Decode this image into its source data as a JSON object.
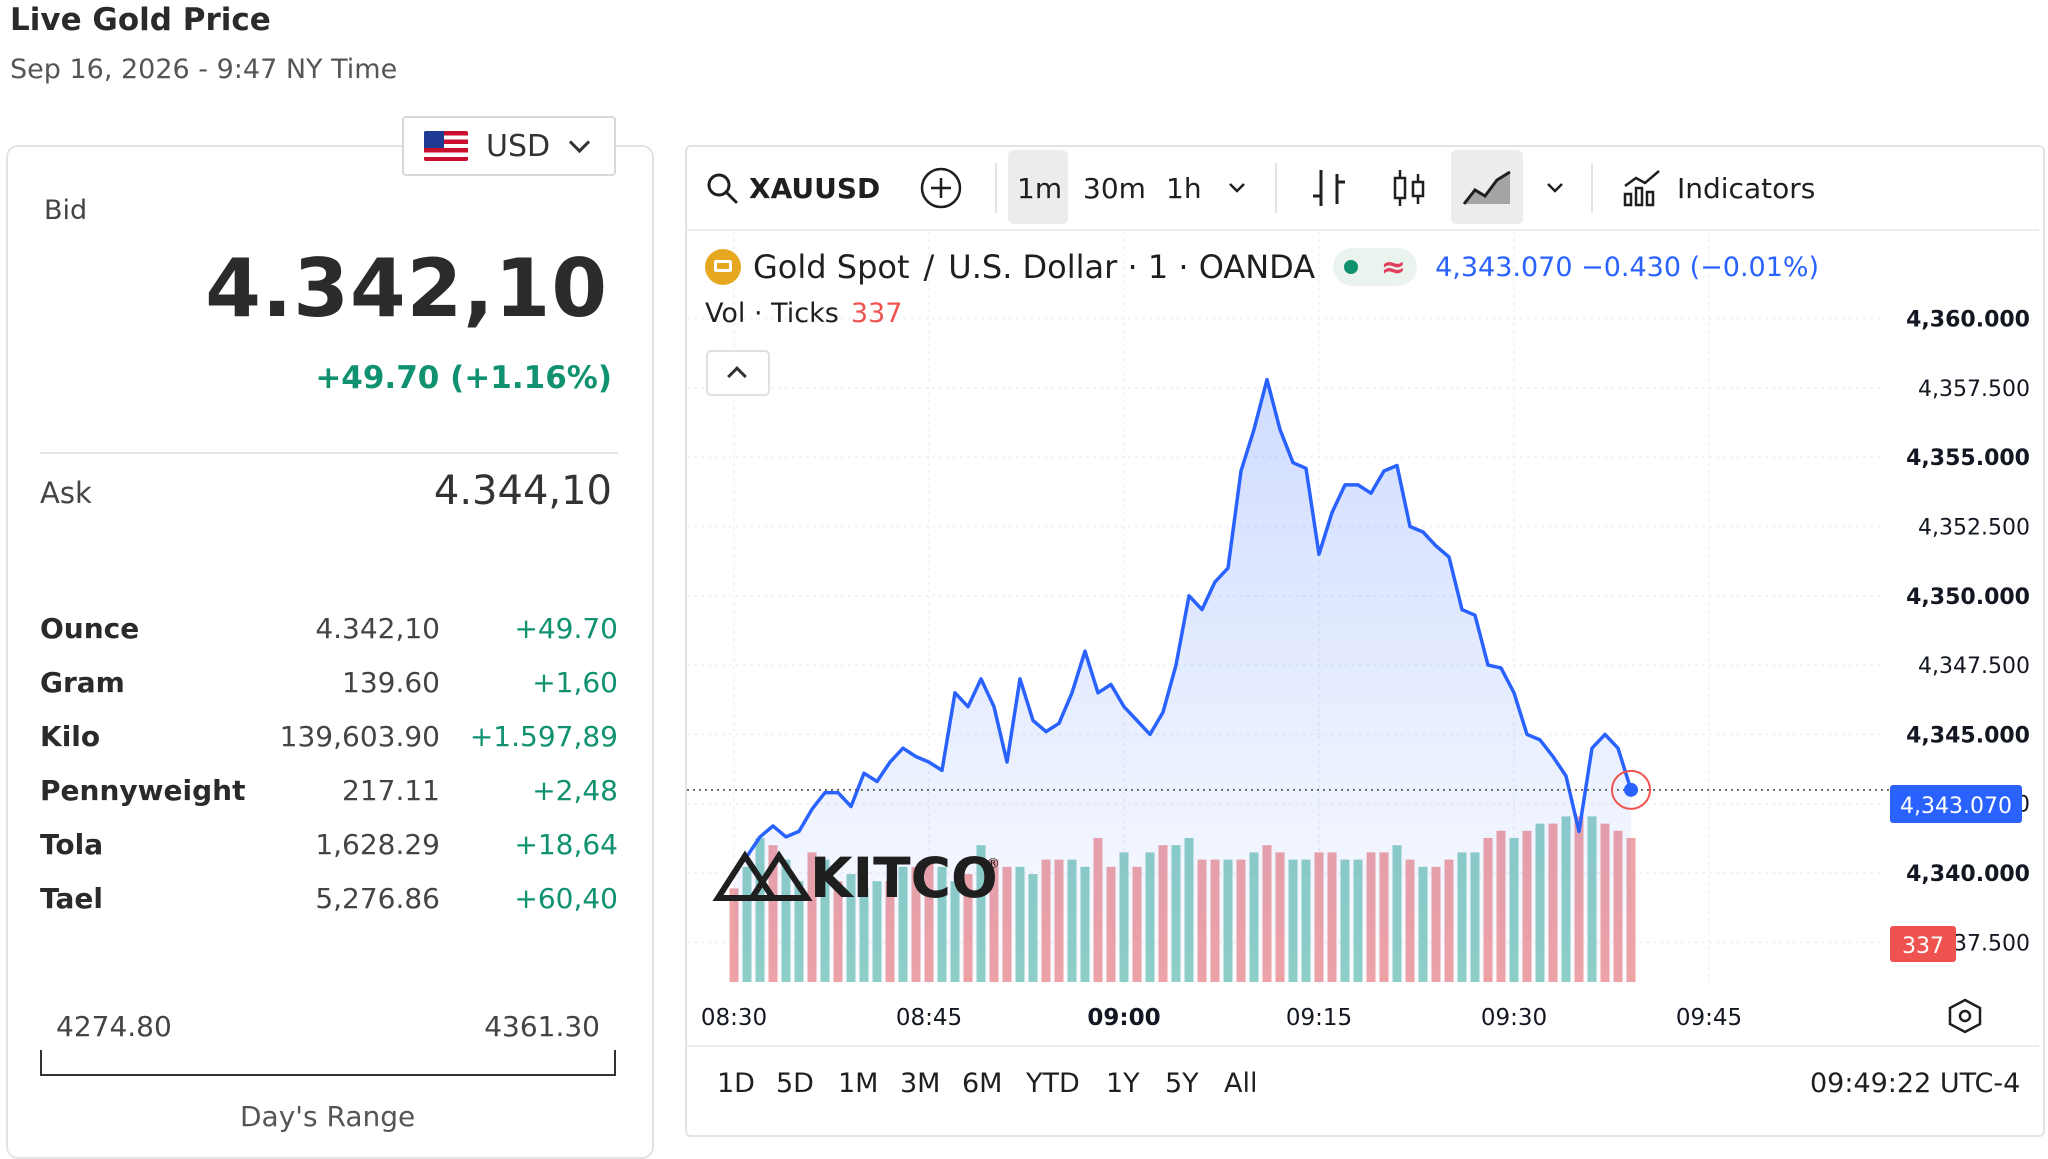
{
  "header": {
    "title": "Live Gold Price",
    "date": "Sep 16, 2026 - 9:47 NY Time"
  },
  "currency": {
    "label": "USD",
    "flag_icon": "us-flag-icon"
  },
  "quote": {
    "bid_label": "Bid",
    "bid": "4.342,10",
    "change": "+49.70 (+1.16%)",
    "ask_label": "Ask",
    "ask": "4.344,10"
  },
  "metals": [
    {
      "name": "Ounce",
      "value": "4.342,10",
      "change": "+49.70"
    },
    {
      "name": "Gram",
      "value": "139.60",
      "change": "+1,60"
    },
    {
      "name": "Kilo",
      "value": "139,603.90",
      "change": "+1.597,89"
    },
    {
      "name": "Pennyweight",
      "value": "217.11",
      "change": "+2,48"
    },
    {
      "name": "Tola",
      "value": "1,628.29",
      "change": "+18,64"
    },
    {
      "name": "Tael",
      "value": "5,276.86",
      "change": "+60,40"
    }
  ],
  "day_range": {
    "low": "4274.80",
    "high": "4361.30",
    "label": "Day's Range"
  },
  "toolbar": {
    "symbol": "XAUUSD",
    "intervals": [
      "1m",
      "30m",
      "1h"
    ],
    "active_interval": "1m",
    "indicators_label": "Indicators"
  },
  "legend": {
    "instrument": "Gold Spot",
    "separator": "/",
    "quote_name": "U.S. Dollar · 1 · OANDA",
    "ohlc": "4,343.070  −0.430 (−0.01%)",
    "vol_label": "Vol · Ticks",
    "vol_value": "337"
  },
  "watermark": "KITCO",
  "range_buttons": [
    "1D",
    "5D",
    "1M",
    "3M",
    "6M",
    "YTD",
    "1Y",
    "5Y",
    "All"
  ],
  "clock": "09:49:22 UTC-4",
  "colors": {
    "line": "#2962ff",
    "up": "#8fd0c6",
    "down": "#f0a3a5",
    "accent_green": "#109270"
  },
  "chart_data": {
    "type": "area",
    "symbol": "XAUUSD",
    "y_range": [
      4336.5,
      4361.5
    ],
    "y_ticks": [
      "4,360.000",
      "4,357.500",
      "4,355.000",
      "4,352.500",
      "4,350.000",
      "4,347.500",
      "4,345.000",
      "4,342.500",
      "4,340.000",
      "4,337.500"
    ],
    "y_tick_values": [
      4360,
      4357.5,
      4355,
      4352.5,
      4350,
      4347.5,
      4345,
      4342.5,
      4340,
      4337.5
    ],
    "x_ticks": [
      "08:30",
      "08:45",
      "09:00",
      "09:15",
      "09:30",
      "09:45"
    ],
    "x_tick_minutes": [
      510,
      525,
      540,
      555,
      570,
      585
    ],
    "bold_tick": "09:00",
    "last_price": "4,343.070",
    "last_volume": "337",
    "start_minute": 510,
    "prices": [
      4340.0,
      4340.6,
      4341.3,
      4341.7,
      4341.3,
      4341.5,
      4342.3,
      4342.9,
      4342.9,
      4342.4,
      4343.6,
      4343.3,
      4344.0,
      4344.5,
      4344.2,
      4344.0,
      4343.7,
      4346.5,
      4346.0,
      4347.0,
      4346.0,
      4344.0,
      4347.0,
      4345.5,
      4345.1,
      4345.4,
      4346.5,
      4348.0,
      4346.5,
      4346.8,
      4346.0,
      4345.5,
      4345.0,
      4345.8,
      4347.5,
      4350.0,
      4349.5,
      4350.5,
      4351.0,
      4354.5,
      4356.0,
      4357.8,
      4356.0,
      4354.8,
      4354.6,
      4351.5,
      4353.0,
      4354.0,
      4354.0,
      4353.7,
      4354.5,
      4354.7,
      4352.5,
      4352.3,
      4351.8,
      4351.4,
      4349.5,
      4349.3,
      4347.5,
      4347.4,
      4346.5,
      4345.0,
      4344.8,
      4344.2,
      4343.5,
      4341.5,
      4344.5,
      4345.0,
      4344.5,
      4343.0
    ],
    "volumes": [
      130,
      160,
      200,
      190,
      170,
      140,
      180,
      170,
      140,
      150,
      130,
      140,
      140,
      160,
      160,
      170,
      160,
      140,
      150,
      190,
      170,
      160,
      160,
      150,
      170,
      170,
      170,
      160,
      200,
      160,
      180,
      160,
      180,
      190,
      190,
      200,
      170,
      170,
      170,
      170,
      180,
      190,
      180,
      170,
      170,
      180,
      180,
      170,
      170,
      180,
      180,
      190,
      170,
      160,
      160,
      170,
      180,
      180,
      200,
      210,
      200,
      210,
      220,
      220,
      230,
      230,
      230,
      220,
      210,
      200
    ],
    "volume_directions": [
      "down",
      "up",
      "up",
      "down",
      "up",
      "up",
      "down",
      "up",
      "down",
      "up",
      "up",
      "up",
      "down",
      "up",
      "down",
      "down",
      "up",
      "up",
      "down",
      "up",
      "down",
      "down",
      "up",
      "up",
      "down",
      "down",
      "up",
      "up",
      "down",
      "down",
      "up",
      "down",
      "up",
      "down",
      "up",
      "up",
      "down",
      "down",
      "up",
      "down",
      "up",
      "down",
      "down",
      "up",
      "up",
      "down",
      "down",
      "up",
      "up",
      "down",
      "down",
      "up",
      "down",
      "up",
      "down",
      "down",
      "up",
      "up",
      "down",
      "down",
      "up",
      "down",
      "up",
      "down",
      "up",
      "down",
      "up",
      "down",
      "down",
      "down"
    ]
  }
}
